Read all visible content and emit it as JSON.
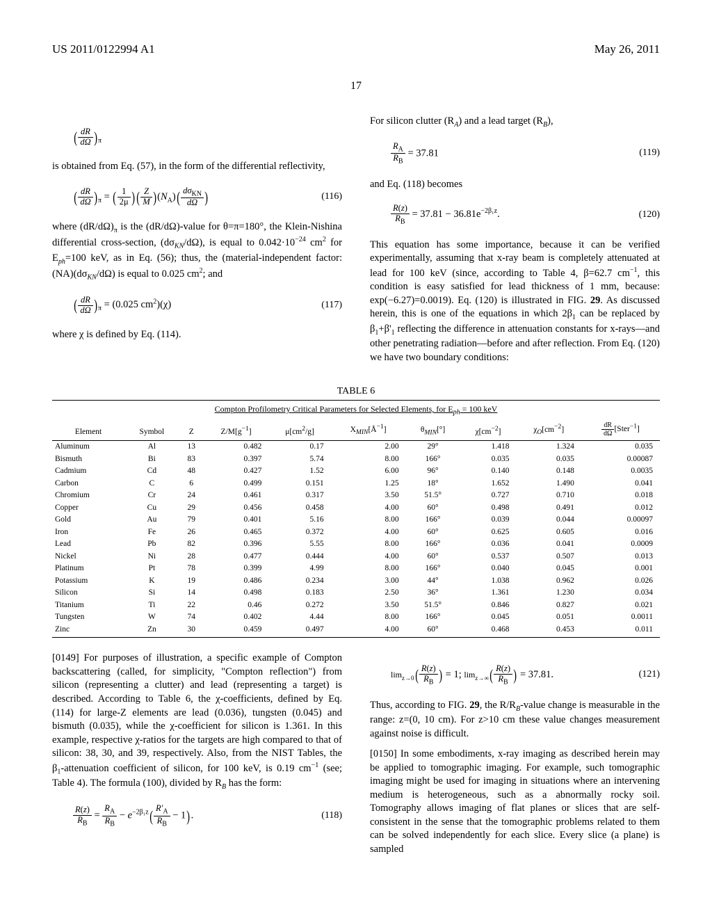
{
  "header": {
    "left": "US 2011/0122994 A1",
    "right": "May 26, 2011"
  },
  "page_number": "17",
  "left_column": {
    "p1": "is obtained from Eq. (57), in the form of the differential reflectivity,",
    "eq116_num": "(116)",
    "p2a": "where (dR/dΩ)",
    "p2b": " is the (dR/dΩ)-value for θ=π=180°, the Klein-Nishina differential cross-section, (dσ",
    "p2c": "/dΩ), is equal to 0.042·10",
    "p2d": " cm",
    "p2e": " for E",
    "p2f": "=100 keV, as in Eq. (56); thus, the (material-independent factor: (NA)(dσ",
    "p2g": "/dΩ) is equal to 0.025 cm",
    "p2h": "; and",
    "eq117_num": "(117)",
    "p3": "where χ is defined by Eq. (114).",
    "para149_label": "[0149]",
    "para149": "   For purposes of illustration, a specific example of Compton backscattering (called, for simplicity, \"Compton reflection\") from silicon (representing a clutter) and lead (representing a target) is described. According to Table 6, the χ-coefficients, defined by Eq. (114) for large-Z elements are lead (0.036), tungsten (0.045) and bismuth (0.035), while the χ-coefficient for silicon is 1.361. In this example, respective χ-ratios for the targets are high compared to that of silicon: 38, 30, and 39, respectively. Also, from the NIST Tables, the β",
    "para149b": "-attenuation coefficient of silicon, for 100 keV, is 0.19 cm",
    "para149c": " (see; Table 4). The formula (100), divided by R",
    "para149d": " has the form:",
    "eq118_num": "(118)"
  },
  "right_column": {
    "p1a": "For silicon clutter (R",
    "p1b": ") and a lead target (R",
    "p1c": "),",
    "eq119_text": " = 37.81",
    "eq119_num": "(119)",
    "p2": "and Eq. (118) becomes",
    "eq120_text": " = 37.81 − 36.81e",
    "eq120_num": "(120)",
    "p3a": "This equation has some importance, because it can be verified experimentally, assuming that x-ray beam is completely attenuated at lead for 100 keV (since, according to Table 4, β=62.7 cm",
    "p3b": ", this condition is easy satisfied for lead thickness of 1 mm, because: exp(−6.27)=0.0019). Eq. (120) is illustrated in FIG. ",
    "p3c": ". As discussed herein, this is one of the equations in which 2β",
    "p3d": " can be replaced by β",
    "p3e": "+β'",
    "p3f": " reflecting the difference in attenuation constants for x-rays—and other penetrating radiation—before and after reflection. From Eq. (120) we have two boundary conditions:",
    "fig29": "29",
    "eq121_num": "(121)",
    "eq121_a": " = 1;   ",
    "eq121_b": " = 37.81.",
    "p4a": "Thus, according to FIG. ",
    "p4b": ", the R/R",
    "p4c": "-value change is measurable in the range: z=(0, 10 cm). For z>10 cm these value changes measurement against noise is difficult.",
    "para150_label": "[0150]",
    "para150": "   In some embodiments, x-ray imaging as described herein may be applied to tomographic imaging. For example, such tomographic imaging might be used for imaging in situations where an intervening medium is heterogeneous, such as a abnormally rocky soil. Tomography allows imaging of flat planes or slices that are self-consistent in the sense that the tomographic problems related to them can be solved independently for each slice. Every slice (a plane) is sampled"
  },
  "table": {
    "title": "TABLE 6",
    "caption": "Compton Profilometry Critical Parameters for Selected Elements, for E_ph = 100 keV",
    "columns": [
      "Element",
      "Symbol",
      "Z",
      "Z/M[g⁻¹]",
      "μ[cm²/g]",
      "X_MIN[Å⁻¹]",
      "θ_MIN[°]",
      "χ[cm⁻²]",
      "χ_O[cm⁻²]",
      "dR/dΩ[Ster⁻¹]"
    ],
    "rows": [
      [
        "Aluminum",
        "Al",
        "13",
        "0.482",
        "0.17",
        "2.00",
        "29°",
        "1.418",
        "1.324",
        "0.035"
      ],
      [
        "Bismuth",
        "Bi",
        "83",
        "0.397",
        "5.74",
        "8.00",
        "166°",
        "0.035",
        "0.035",
        "0.00087"
      ],
      [
        "Cadmium",
        "Cd",
        "48",
        "0.427",
        "1.52",
        "6.00",
        "96°",
        "0.140",
        "0.148",
        "0.0035"
      ],
      [
        "Carbon",
        "C",
        "6",
        "0.499",
        "0.151",
        "1.25",
        "18°",
        "1.652",
        "1.490",
        "0.041"
      ],
      [
        "Chromium",
        "Cr",
        "24",
        "0.461",
        "0.317",
        "3.50",
        "51.5°",
        "0.727",
        "0.710",
        "0.018"
      ],
      [
        "Copper",
        "Cu",
        "29",
        "0.456",
        "0.458",
        "4.00",
        "60°",
        "0.498",
        "0.491",
        "0.012"
      ],
      [
        "Gold",
        "Au",
        "79",
        "0.401",
        "5.16",
        "8.00",
        "166°",
        "0.039",
        "0.044",
        "0.00097"
      ],
      [
        "Iron",
        "Fe",
        "26",
        "0.465",
        "0.372",
        "4.00",
        "60°",
        "0.625",
        "0.605",
        "0.016"
      ],
      [
        "Lead",
        "Pb",
        "82",
        "0.396",
        "5.55",
        "8.00",
        "166°",
        "0.036",
        "0.041",
        "0.0009"
      ],
      [
        "Nickel",
        "Ni",
        "28",
        "0.477",
        "0.444",
        "4.00",
        "60°",
        "0.537",
        "0.507",
        "0.013"
      ],
      [
        "Platinum",
        "Pt",
        "78",
        "0.399",
        "4.99",
        "8.00",
        "166°",
        "0.040",
        "0.045",
        "0.001"
      ],
      [
        "Potassium",
        "K",
        "19",
        "0.486",
        "0.234",
        "3.00",
        "44°",
        "1.038",
        "0.962",
        "0.026"
      ],
      [
        "Silicon",
        "Si",
        "14",
        "0.498",
        "0.183",
        "2.50",
        "36°",
        "1.361",
        "1.230",
        "0.034"
      ],
      [
        "Titanium",
        "Ti",
        "22",
        "0.46",
        "0.272",
        "3.50",
        "51.5°",
        "0.846",
        "0.827",
        "0.021"
      ],
      [
        "Tungsten",
        "W",
        "74",
        "0.402",
        "4.44",
        "8.00",
        "166°",
        "0.045",
        "0.051",
        "0.0011"
      ],
      [
        "Zinc",
        "Zn",
        "30",
        "0.459",
        "0.497",
        "4.00",
        "60°",
        "0.468",
        "0.453",
        "0.011"
      ]
    ]
  }
}
